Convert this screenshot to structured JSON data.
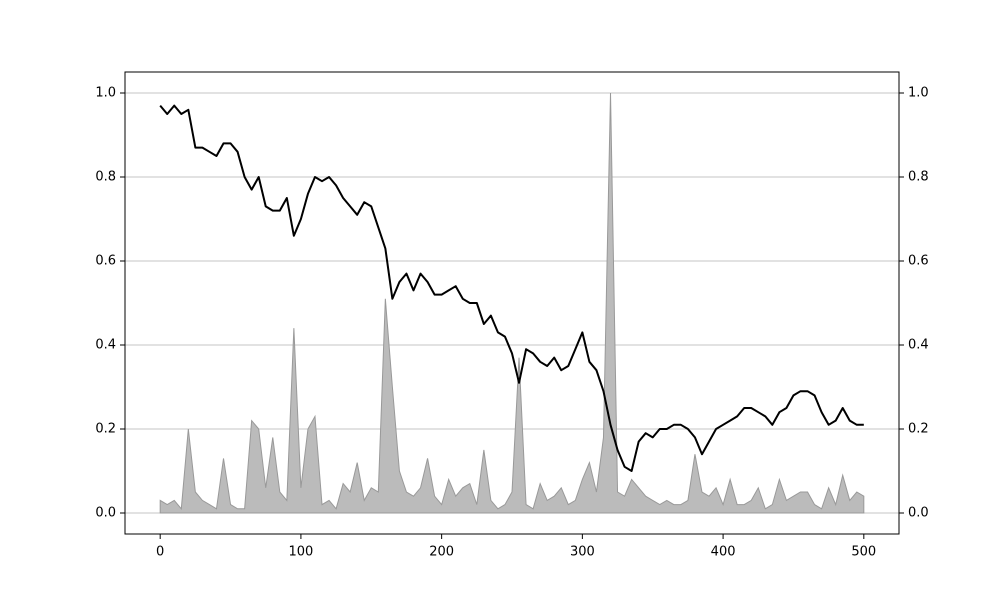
{
  "chart_data": {
    "type": "line",
    "x": [
      0,
      5,
      10,
      15,
      20,
      25,
      30,
      35,
      40,
      45,
      50,
      55,
      60,
      65,
      70,
      75,
      80,
      85,
      90,
      95,
      100,
      105,
      110,
      115,
      120,
      125,
      130,
      135,
      140,
      145,
      150,
      155,
      160,
      165,
      170,
      175,
      180,
      185,
      190,
      195,
      200,
      205,
      210,
      215,
      220,
      225,
      230,
      235,
      240,
      245,
      250,
      255,
      260,
      265,
      270,
      275,
      280,
      285,
      290,
      295,
      300,
      305,
      310,
      315,
      320,
      325,
      330,
      335,
      340,
      345,
      350,
      355,
      360,
      365,
      370,
      375,
      380,
      385,
      390,
      395,
      400,
      405,
      410,
      415,
      420,
      425,
      430,
      435,
      440,
      445,
      450,
      455,
      460,
      465,
      470,
      475,
      480,
      485,
      490,
      495,
      500
    ],
    "series": [
      {
        "kind": "area",
        "axis": "y2",
        "color": "#bbbbbb",
        "edge": "#999999",
        "values": [
          0.03,
          0.02,
          0.03,
          0.01,
          0.2,
          0.05,
          0.03,
          0.02,
          0.01,
          0.13,
          0.02,
          0.01,
          0.01,
          0.22,
          0.2,
          0.06,
          0.18,
          0.05,
          0.03,
          0.44,
          0.06,
          0.2,
          0.23,
          0.02,
          0.03,
          0.01,
          0.07,
          0.05,
          0.12,
          0.03,
          0.06,
          0.05,
          0.51,
          0.3,
          0.1,
          0.05,
          0.04,
          0.06,
          0.13,
          0.04,
          0.02,
          0.08,
          0.04,
          0.06,
          0.07,
          0.02,
          0.15,
          0.03,
          0.01,
          0.02,
          0.05,
          0.37,
          0.02,
          0.01,
          0.07,
          0.03,
          0.04,
          0.06,
          0.02,
          0.03,
          0.08,
          0.12,
          0.05,
          0.18,
          1.0,
          0.05,
          0.04,
          0.08,
          0.06,
          0.04,
          0.03,
          0.02,
          0.03,
          0.02,
          0.02,
          0.03,
          0.14,
          0.05,
          0.04,
          0.06,
          0.02,
          0.08,
          0.02,
          0.02,
          0.03,
          0.06,
          0.01,
          0.02,
          0.08,
          0.03,
          0.04,
          0.05,
          0.05,
          0.02,
          0.01,
          0.06,
          0.02,
          0.09,
          0.03,
          0.05,
          0.04
        ]
      },
      {
        "kind": "line",
        "color": "#000000",
        "values": [
          0.97,
          0.95,
          0.97,
          0.95,
          0.96,
          0.87,
          0.87,
          0.86,
          0.85,
          0.88,
          0.88,
          0.86,
          0.8,
          0.77,
          0.8,
          0.73,
          0.72,
          0.72,
          0.75,
          0.66,
          0.7,
          0.76,
          0.8,
          0.79,
          0.8,
          0.78,
          0.75,
          0.73,
          0.71,
          0.74,
          0.73,
          0.68,
          0.63,
          0.51,
          0.55,
          0.57,
          0.53,
          0.57,
          0.55,
          0.52,
          0.52,
          0.53,
          0.54,
          0.51,
          0.5,
          0.5,
          0.45,
          0.47,
          0.43,
          0.42,
          0.38,
          0.31,
          0.39,
          0.38,
          0.36,
          0.35,
          0.37,
          0.34,
          0.35,
          0.39,
          0.43,
          0.36,
          0.34,
          0.29,
          0.21,
          0.15,
          0.11,
          0.1,
          0.17,
          0.19,
          0.18,
          0.2,
          0.2,
          0.21,
          0.21,
          0.2,
          0.18,
          0.14,
          0.17,
          0.2,
          0.21,
          0.22,
          0.23,
          0.25,
          0.25,
          0.24,
          0.23,
          0.21,
          0.24,
          0.25,
          0.28,
          0.29,
          0.29,
          0.28,
          0.24,
          0.21,
          0.22,
          0.25,
          0.22,
          0.21,
          0.21
        ]
      }
    ],
    "xlim": [
      -25,
      525
    ],
    "xticks": [
      0,
      100,
      200,
      300,
      400,
      500
    ],
    "ylim": [
      -0.05,
      1.05
    ],
    "yticks": [
      {
        "value": 0,
        "label": "0.0"
      },
      0.2,
      0.4,
      0.6,
      0.8,
      {
        "value": 1,
        "label": "1.0"
      }
    ],
    "y2lim": [
      -0.05,
      1.05
    ],
    "y2ticks": [
      {
        "value": 0,
        "label": "0.0"
      },
      0.2,
      0.4,
      0.6,
      0.8,
      {
        "value": 1,
        "label": "1.0"
      }
    ],
    "grid": true
  }
}
